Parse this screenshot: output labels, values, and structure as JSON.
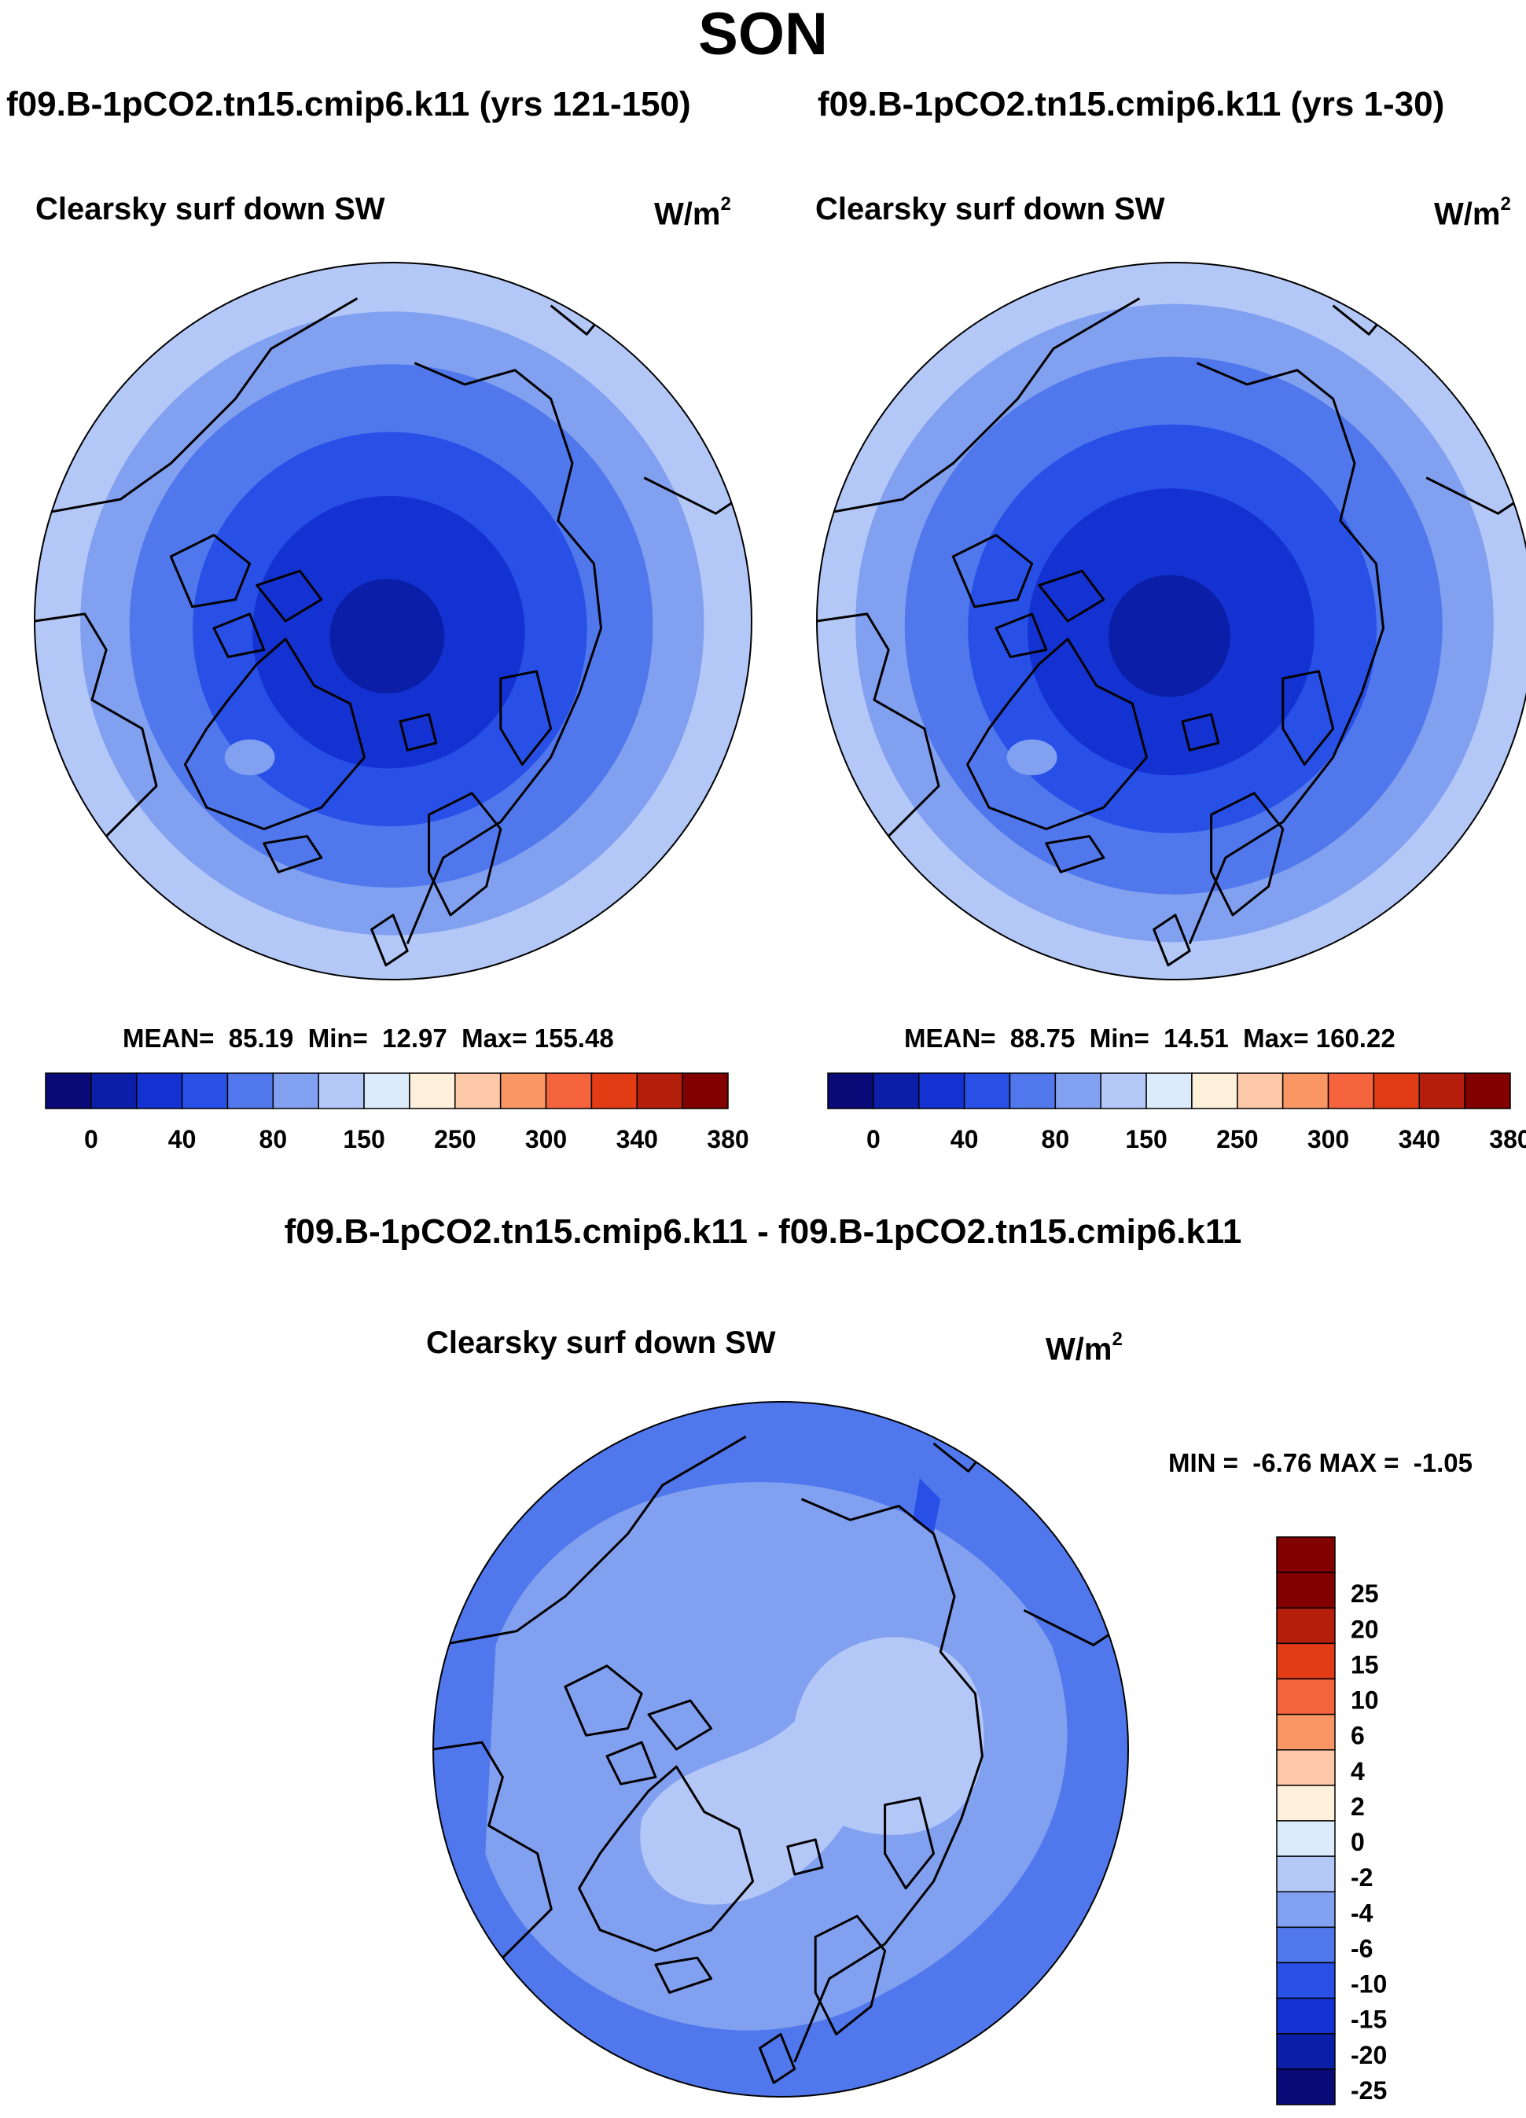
{
  "title": "SON",
  "units": {
    "base": "W/m",
    "exp": "2"
  },
  "panels": [
    {
      "title": "f09.B-1pCO2.tn15.cmip6.k11 (yrs 121-150)",
      "variable": "Clearsky surf down SW",
      "stats": {
        "mean_label": "MEAN=",
        "mean": "85.19",
        "min_label": "Min=",
        "min": "12.97",
        "max_label": "Max=",
        "max": "155.48"
      }
    },
    {
      "title": "f09.B-1pCO2.tn15.cmip6.k11 (yrs 1-30)",
      "variable": "Clearsky surf down SW",
      "stats": {
        "mean_label": "MEAN=",
        "mean": "88.75",
        "min_label": "Min=",
        "min": "14.51",
        "max_label": "Max=",
        "max": "160.22"
      }
    }
  ],
  "diff_panel": {
    "title": "f09.B-1pCO2.tn15.cmip6.k11 - f09.B-1pCO2.tn15.cmip6.k11",
    "variable": "Clearsky surf down SW",
    "stats": {
      "min_label": "MIN =",
      "min": "-6.76",
      "max_label": "MAX =",
      "max": "-1.05"
    }
  },
  "chart_data": [
    {
      "type": "heatmap",
      "projection": "north polar stereographic",
      "title": "f09.B-1pCO2.tn15.cmip6.k11 (yrs 121-150)",
      "variable": "Clearsky surf down SW",
      "units": "W/m2",
      "colorbar": {
        "levels": [
          "0",
          "40",
          "80",
          "150",
          "250",
          "300",
          "340",
          "380"
        ],
        "colors": [
          "#0a0a78",
          "#0a1ea8",
          "#1432d2",
          "#2850e6",
          "#5078ec",
          "#82a0f0",
          "#b4c8f8",
          "#dcebfc",
          "#fff0dc",
          "#fcc8a8",
          "#fa9664",
          "#f5643c",
          "#e13c14",
          "#b41e0a",
          "#820000"
        ]
      },
      "stats": {
        "mean": 85.19,
        "min": 12.97,
        "max": 155.48
      },
      "rings": [
        {
          "level_index": 1,
          "r_frac": 0.16
        },
        {
          "level_index": 2,
          "r_frac": 0.38
        },
        {
          "level_index": 3,
          "r_frac": 0.55
        },
        {
          "level_index": 4,
          "r_frac": 0.73
        },
        {
          "level_index": 5,
          "r_frac": 0.87
        },
        {
          "level_index": 6,
          "r_frac": 1.0
        }
      ]
    },
    {
      "type": "heatmap",
      "projection": "north polar stereographic",
      "title": "f09.B-1pCO2.tn15.cmip6.k11 (yrs 1-30)",
      "variable": "Clearsky surf down SW",
      "units": "W/m2",
      "colorbar": {
        "levels": [
          "0",
          "40",
          "80",
          "150",
          "250",
          "300",
          "340",
          "380"
        ],
        "colors": [
          "#0a0a78",
          "#0a1ea8",
          "#1432d2",
          "#2850e6",
          "#5078ec",
          "#82a0f0",
          "#b4c8f8",
          "#dcebfc",
          "#fff0dc",
          "#fcc8a8",
          "#fa9664",
          "#f5643c",
          "#e13c14",
          "#b41e0a",
          "#820000"
        ]
      },
      "stats": {
        "mean": 88.75,
        "min": 14.51,
        "max": 160.22
      },
      "rings": [
        {
          "level_index": 1,
          "r_frac": 0.17
        },
        {
          "level_index": 2,
          "r_frac": 0.4
        },
        {
          "level_index": 3,
          "r_frac": 0.57
        },
        {
          "level_index": 4,
          "r_frac": 0.75
        },
        {
          "level_index": 5,
          "r_frac": 0.89
        },
        {
          "level_index": 6,
          "r_frac": 1.0
        }
      ]
    },
    {
      "type": "heatmap",
      "projection": "north polar stereographic",
      "title": "f09.B-1pCO2.tn15.cmip6.k11 - f09.B-1pCO2.tn15.cmip6.k11",
      "variable": "Clearsky surf down SW",
      "units": "W/m2",
      "colorbar": {
        "levels": [
          "-25",
          "-20",
          "-15",
          "-10",
          "-6",
          "-4",
          "-2",
          "0",
          "2",
          "4",
          "6",
          "10",
          "15",
          "20",
          "25"
        ],
        "colors": [
          "#0a0a78",
          "#0a1ea8",
          "#1432d2",
          "#2850e6",
          "#5078ec",
          "#82a0f0",
          "#b4c8f8",
          "#dcebfc",
          "#fff0dc",
          "#fcc8a8",
          "#fa9664",
          "#f5643c",
          "#e13c14",
          "#b41e0a",
          "#820000"
        ]
      },
      "stats": {
        "min": -6.76,
        "max": -1.05
      },
      "regions": [
        {
          "range": "-6 to -4",
          "where": "outer ring"
        },
        {
          "range": "-4 to -2",
          "where": "Arctic basin"
        },
        {
          "range": "-2 to 0",
          "where": "central Arctic and Greenland"
        }
      ]
    }
  ]
}
